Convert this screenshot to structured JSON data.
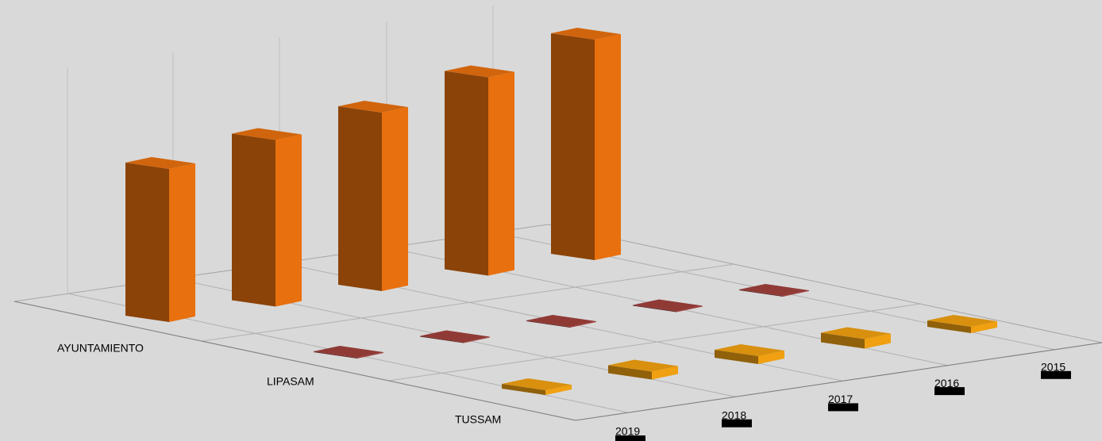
{
  "chart_data": {
    "type": "bar3d",
    "categories": [
      "2019",
      "2018",
      "2017",
      "2016",
      "2015"
    ],
    "series": [
      {
        "name": "AYUNTAMIENTO",
        "color": "#e8700e",
        "values": [
          193,
          210,
          225,
          250,
          278
        ]
      },
      {
        "name": "LIPASAM",
        "color": "#a0403c",
        "values": [
          1,
          1,
          1,
          1,
          1
        ]
      },
      {
        "name": "TUSSAM",
        "color": "#f0a010",
        "values": [
          6,
          10,
          10,
          12,
          8
        ]
      }
    ],
    "grid": true
  }
}
